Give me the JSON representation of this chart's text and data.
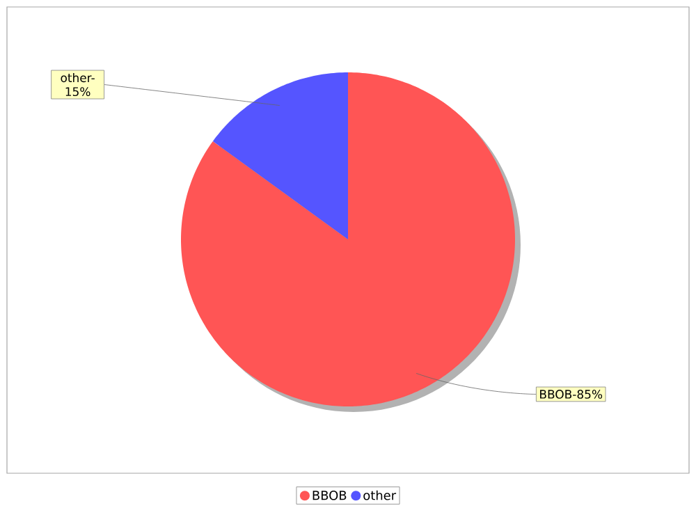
{
  "chart_data": {
    "type": "pie",
    "categories": [
      "BBOB",
      "other"
    ],
    "values": [
      85,
      15
    ],
    "colors": [
      "#ff5555",
      "#5555ff"
    ],
    "value_labels": [
      "BBOB-85%",
      "other-15%"
    ],
    "legend": "bottom"
  }
}
